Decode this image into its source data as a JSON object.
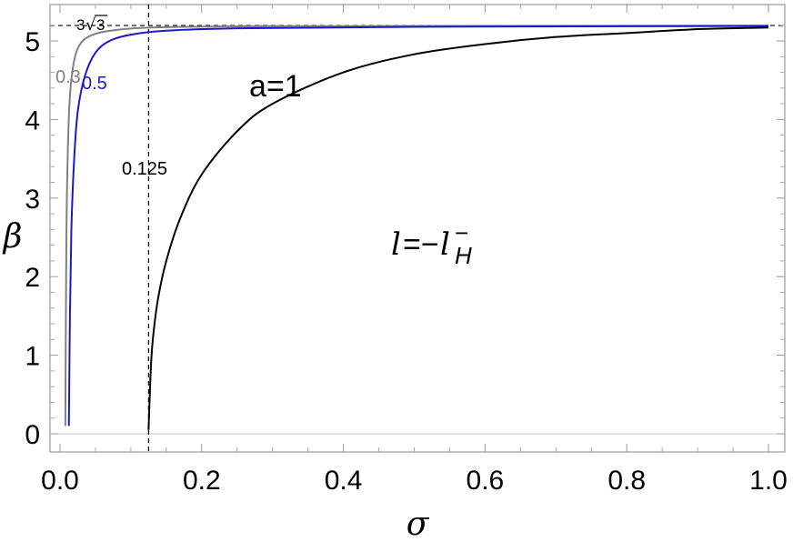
{
  "chart_data": {
    "type": "line",
    "xlabel": "σ",
    "ylabel": "β",
    "xlim": [
      0,
      1.0
    ],
    "ylim": [
      0,
      5.2
    ],
    "x_ticks": [
      "0.0",
      "0.2",
      "0.4",
      "0.6",
      "0.8",
      "1.0"
    ],
    "y_ticks": [
      "0",
      "1",
      "2",
      "3",
      "4",
      "5"
    ],
    "x_tick_values": [
      0,
      0.2,
      0.4,
      0.6,
      0.8,
      1.0
    ],
    "y_tick_values": [
      0,
      1,
      2,
      3,
      4,
      5
    ],
    "grid": false,
    "asymptote": {
      "value": 5.196,
      "label_coef": "3",
      "label_radicand": "3"
    },
    "vertical_marker": {
      "value": 0.125,
      "label": "0.125"
    },
    "annotation": {
      "lhs": "l",
      "eq": "=−",
      "rhs": "l",
      "sup": "−",
      "sub": "H"
    },
    "series": [
      {
        "name": "0.3",
        "color": "#808080",
        "sigma0": 0.0075,
        "points": [
          [
            0.0075,
            0.1
          ],
          [
            0.009,
            2.5
          ],
          [
            0.011,
            3.6
          ],
          [
            0.014,
            4.3
          ],
          [
            0.02,
            4.75
          ],
          [
            0.03,
            4.98
          ],
          [
            0.05,
            5.09
          ],
          [
            0.08,
            5.14
          ],
          [
            0.13,
            5.17
          ],
          [
            0.25,
            5.185
          ],
          [
            0.5,
            5.19
          ],
          [
            1.0,
            5.195
          ]
        ]
      },
      {
        "name": "0.5",
        "color": "#1a1acc",
        "sigma0": 0.0125,
        "points": [
          [
            0.0125,
            0.1
          ],
          [
            0.014,
            1.5
          ],
          [
            0.016,
            2.6
          ],
          [
            0.02,
            3.5
          ],
          [
            0.025,
            4.1
          ],
          [
            0.035,
            4.55
          ],
          [
            0.05,
            4.85
          ],
          [
            0.07,
            5.0
          ],
          [
            0.1,
            5.08
          ],
          [
            0.15,
            5.13
          ],
          [
            0.25,
            5.16
          ],
          [
            0.5,
            5.18
          ],
          [
            1.0,
            5.19
          ]
        ]
      },
      {
        "name": "a=1",
        "color": "#000000",
        "sigma0": 0.125,
        "points": [
          [
            0.125,
            0.05
          ],
          [
            0.128,
            0.8
          ],
          [
            0.131,
            1.2
          ],
          [
            0.138,
            1.7
          ],
          [
            0.15,
            2.2
          ],
          [
            0.17,
            2.75
          ],
          [
            0.2,
            3.3
          ],
          [
            0.25,
            3.85
          ],
          [
            0.3,
            4.2
          ],
          [
            0.4,
            4.6
          ],
          [
            0.5,
            4.83
          ],
          [
            0.6,
            4.96
          ],
          [
            0.7,
            5.05
          ],
          [
            0.8,
            5.1
          ],
          [
            0.9,
            5.15
          ],
          [
            1.0,
            5.17
          ]
        ]
      }
    ]
  }
}
